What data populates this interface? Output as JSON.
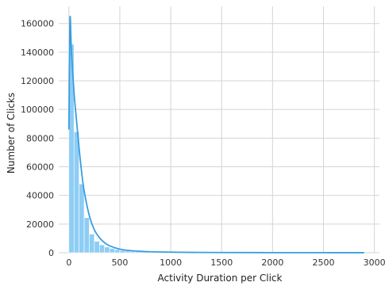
{
  "chart_data": {
    "type": "bar",
    "style": "histogram with kde curve",
    "xlabel": "Activity Duration per Click",
    "ylabel": "Number of Clicks",
    "xlim": [
      -100,
      3050
    ],
    "ylim": [
      0,
      172000
    ],
    "xticks": [
      0,
      500,
      1000,
      1500,
      2000,
      2500,
      3000
    ],
    "yticks": [
      0,
      20000,
      40000,
      60000,
      80000,
      100000,
      120000,
      140000,
      160000
    ],
    "grid": true,
    "legend": "none",
    "bin_width": 50,
    "bins": [
      {
        "x0": 0,
        "x1": 50,
        "count": 145500
      },
      {
        "x0": 50,
        "x1": 100,
        "count": 84500
      },
      {
        "x0": 100,
        "x1": 150,
        "count": 48000
      },
      {
        "x0": 150,
        "x1": 200,
        "count": 24500
      },
      {
        "x0": 200,
        "x1": 250,
        "count": 13000
      },
      {
        "x0": 250,
        "x1": 300,
        "count": 8000
      },
      {
        "x0": 300,
        "x1": 350,
        "count": 5500
      },
      {
        "x0": 350,
        "x1": 400,
        "count": 4000
      },
      {
        "x0": 400,
        "x1": 450,
        "count": 3000
      },
      {
        "x0": 450,
        "x1": 500,
        "count": 2200
      },
      {
        "x0": 500,
        "x1": 550,
        "count": 1600
      },
      {
        "x0": 550,
        "x1": 600,
        "count": 1200
      },
      {
        "x0": 600,
        "x1": 650,
        "count": 900
      },
      {
        "x0": 650,
        "x1": 700,
        "count": 700
      },
      {
        "x0": 700,
        "x1": 750,
        "count": 550
      },
      {
        "x0": 750,
        "x1": 800,
        "count": 450
      },
      {
        "x0": 800,
        "x1": 850,
        "count": 350
      },
      {
        "x0": 850,
        "x1": 900,
        "count": 300
      },
      {
        "x0": 900,
        "x1": 950,
        "count": 250
      },
      {
        "x0": 950,
        "x1": 1000,
        "count": 200
      },
      {
        "x0": 1000,
        "x1": 1100,
        "count": 300
      },
      {
        "x0": 1100,
        "x1": 1200,
        "count": 200
      },
      {
        "x0": 1200,
        "x1": 1400,
        "count": 200
      },
      {
        "x0": 1400,
        "x1": 1700,
        "count": 150
      },
      {
        "x0": 1700,
        "x1": 2100,
        "count": 100
      },
      {
        "x0": 2100,
        "x1": 2500,
        "count": 80
      },
      {
        "x0": 2500,
        "x1": 2900,
        "count": 60
      }
    ],
    "kde": {
      "x": [
        0,
        10,
        25,
        50,
        75,
        100,
        125,
        150,
        200,
        250,
        300,
        350,
        400,
        500,
        600,
        700,
        800,
        1000,
        1200,
        1500,
        2000,
        2500,
        2900
      ],
      "y": [
        86000,
        163000,
        140000,
        112000,
        92000,
        73000,
        56000,
        43000,
        26000,
        16000,
        10500,
        7000,
        4800,
        2500,
        1500,
        1000,
        700,
        400,
        250,
        150,
        80,
        50,
        30
      ]
    },
    "colors": {
      "bar_fill": "#8ecdf5",
      "bar_edge": "#ffffff",
      "kde_line": "#3a9de0",
      "grid": "#d4d4d4",
      "background": "#ffffff"
    }
  }
}
